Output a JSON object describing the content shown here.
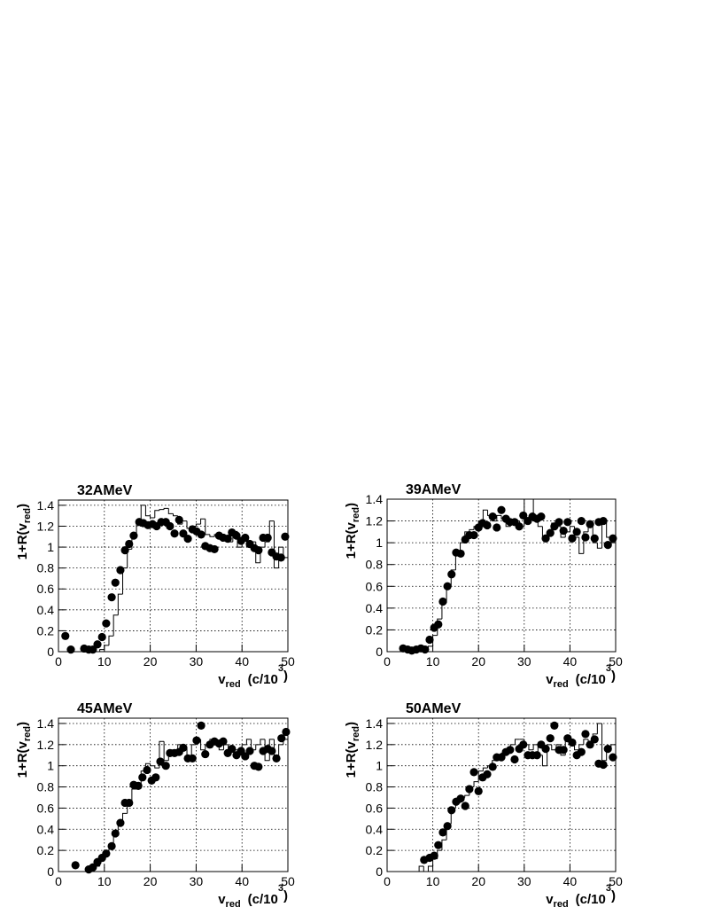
{
  "chart_data": [
    {
      "type": "scatter",
      "title": "32AMeV",
      "xlabel": [
        "v",
        "red",
        "(c/10",
        "3",
        ")"
      ],
      "ylabel": [
        "1+R(v",
        "red",
        ")"
      ],
      "color": "#000000",
      "grid": true,
      "xlim": [
        0,
        50
      ],
      "ylim": [
        0,
        1.45
      ],
      "xticks": [
        0,
        10,
        20,
        30,
        40,
        50
      ],
      "yticks": [
        0,
        0.2,
        0.4,
        0.6,
        0.8,
        1,
        1.2,
        1.4
      ],
      "x": [
        1.5,
        2.7,
        5.6,
        6.6,
        7.5,
        8.5,
        9.5,
        10.4,
        11.6,
        12.4,
        13.5,
        14.5,
        15.4,
        16.4,
        17.6,
        18.5,
        19.5,
        20.5,
        21.4,
        22.4,
        23.4,
        24.3,
        25.3,
        26.3,
        27.2,
        28.2,
        29.2,
        30.1,
        31.1,
        32,
        33,
        34,
        35,
        35.9,
        36.9,
        37.8,
        38.8,
        39.8,
        40.7,
        41.7,
        42.7,
        43.6,
        44.6,
        45.6,
        46.5,
        47.5,
        48.5,
        49.4
      ],
      "values": [
        0.15,
        0.02,
        0.03,
        0.02,
        0.02,
        0.07,
        0.14,
        0.27,
        0.52,
        0.66,
        0.78,
        0.97,
        1.03,
        1.11,
        1.24,
        1.23,
        1.21,
        1.22,
        1.2,
        1.24,
        1.24,
        1.2,
        1.13,
        1.26,
        1.13,
        1.08,
        1.17,
        1.15,
        1.12,
        1.01,
        0.99,
        0.98,
        1.11,
        1.09,
        1.08,
        1.14,
        1.11,
        1.06,
        1.09,
        1.03,
        0.99,
        0.97,
        1.09,
        1.09,
        0.95,
        0.91,
        0.9,
        1.1
      ],
      "histogram": {
        "bins": [
          0,
          1,
          2,
          3,
          4,
          5,
          6,
          7,
          8,
          9,
          10,
          11,
          12,
          13,
          14,
          15,
          16,
          17,
          18,
          19,
          20,
          21,
          22,
          23,
          24,
          25,
          26,
          27,
          28,
          29,
          30,
          31,
          32,
          33,
          34,
          35,
          36,
          37,
          38,
          39,
          40,
          41,
          42,
          43,
          44,
          45,
          46,
          47,
          48,
          49,
          50
        ],
        "values": [
          0,
          0,
          0,
          0,
          0,
          0,
          0,
          0,
          0,
          0.02,
          0.06,
          0.15,
          0.35,
          0.55,
          0.8,
          0.98,
          1.1,
          1.25,
          1.4,
          1.3,
          1.28,
          1.35,
          1.36,
          1.37,
          1.32,
          1.3,
          1.22,
          1.25,
          1.18,
          1.2,
          1.22,
          1.27,
          1.12,
          1.1,
          1.12,
          1.1,
          1.08,
          1.05,
          1.15,
          1.0,
          1.08,
          1.0,
          1.05,
          0.85,
          1.0,
          1.05,
          1.25,
          0.8,
          1.0,
          0.9
        ]
      }
    },
    {
      "type": "scatter",
      "title": "39AMeV",
      "xlabel": [
        "v",
        "red",
        "(c/10",
        "3",
        ")"
      ],
      "ylabel": [
        "1+R(v",
        "red",
        ")"
      ],
      "color": "#000000",
      "grid": true,
      "xlim": [
        0,
        50
      ],
      "ylim": [
        0,
        1.4
      ],
      "xticks": [
        0,
        10,
        20,
        30,
        40,
        50
      ],
      "yticks": [
        0,
        0.2,
        0.4,
        0.6,
        0.8,
        1,
        1.2,
        1.4
      ],
      "x": [
        3.5,
        4.5,
        5.4,
        6.4,
        7.4,
        8.3,
        9.3,
        10.3,
        11.2,
        12.2,
        13.2,
        14.1,
        15.1,
        16.1,
        17.1,
        18,
        19,
        20,
        20.9,
        21.9,
        23.1,
        24,
        25,
        26,
        26.9,
        27.9,
        28.9,
        29.8,
        30.8,
        31.8,
        32.8,
        33.7,
        34.7,
        35.7,
        36.6,
        37.6,
        38.6,
        39.5,
        40.5,
        41.5,
        42.5,
        43.4,
        44.4,
        45.4,
        46.3,
        47.3,
        48.3,
        49.4
      ],
      "values": [
        0.03,
        0.02,
        0.01,
        0.02,
        0.03,
        0.02,
        0.11,
        0.22,
        0.25,
        0.46,
        0.6,
        0.71,
        0.91,
        0.9,
        1.03,
        1.07,
        1.07,
        1.14,
        1.18,
        1.16,
        1.24,
        1.14,
        1.3,
        1.22,
        1.19,
        1.19,
        1.15,
        1.25,
        1.2,
        1.24,
        1.22,
        1.24,
        1.04,
        1.09,
        1.15,
        1.19,
        1.11,
        1.19,
        1.04,
        1.1,
        1.2,
        1.05,
        1.17,
        1.04,
        1.19,
        1.2,
        0.98,
        1.04
      ],
      "histogram": {
        "bins": [
          0,
          1,
          2,
          3,
          4,
          5,
          6,
          7,
          8,
          9,
          10,
          11,
          12,
          13,
          14,
          15,
          16,
          17,
          18,
          19,
          20,
          21,
          22,
          23,
          24,
          25,
          26,
          27,
          28,
          29,
          30,
          31,
          32,
          33,
          34,
          35,
          36,
          37,
          38,
          39,
          40,
          41,
          42,
          43,
          44,
          45,
          46,
          47,
          48,
          49,
          50
        ],
        "values": [
          0,
          0,
          0,
          0,
          0,
          0,
          0,
          0,
          0,
          0.05,
          0.15,
          0.3,
          0.45,
          0.6,
          0.75,
          0.9,
          1.0,
          1.1,
          1.12,
          1.15,
          1.2,
          1.3,
          1.25,
          1.2,
          1.25,
          1.22,
          1.15,
          1.18,
          1.2,
          1.15,
          1.4,
          1.4,
          1.2,
          1.15,
          1.05,
          1.1,
          1.18,
          1.15,
          1.05,
          1.1,
          1.15,
          1.05,
          0.9,
          1.1,
          1.15,
          1.0,
          0.95,
          1.2,
          1.05,
          1.0
        ]
      }
    },
    {
      "type": "scatter",
      "title": "45AMeV",
      "xlabel": [
        "v",
        "red",
        "(c/10",
        "3",
        ")"
      ],
      "ylabel": [
        "1+R(v",
        "red",
        ")"
      ],
      "color": "#000000",
      "grid": true,
      "xlim": [
        0,
        50
      ],
      "ylim": [
        0,
        1.45
      ],
      "xticks": [
        0,
        10,
        20,
        30,
        40,
        50
      ],
      "yticks": [
        0,
        0.2,
        0.4,
        0.6,
        0.8,
        1,
        1.2,
        1.4
      ],
      "x": [
        3.7,
        6.6,
        7.5,
        8.5,
        9.5,
        10.4,
        11.6,
        12.4,
        13.5,
        14.5,
        15.4,
        16.4,
        17.4,
        18.3,
        19.3,
        20.3,
        21.2,
        22.2,
        23.4,
        24.3,
        25.3,
        26.3,
        27.2,
        28.2,
        29.2,
        30.1,
        31.1,
        32,
        33,
        34,
        35,
        35.9,
        36.9,
        37.8,
        38.8,
        39.8,
        40.7,
        41.7,
        42.7,
        43.6,
        44.6,
        45.6,
        46.5,
        47.5,
        48.6,
        49.6
      ],
      "values": [
        0.06,
        0.02,
        0.04,
        0.09,
        0.13,
        0.17,
        0.24,
        0.36,
        0.46,
        0.65,
        0.65,
        0.82,
        0.81,
        0.89,
        0.96,
        0.86,
        0.89,
        1.04,
        1.0,
        1.12,
        1.12,
        1.13,
        1.17,
        1.07,
        1.07,
        1.24,
        1.38,
        1.11,
        1.2,
        1.23,
        1.21,
        1.23,
        1.12,
        1.16,
        1.1,
        1.14,
        1.09,
        1.14,
        1.0,
        0.99,
        1.14,
        1.16,
        1.14,
        1.07,
        1.26,
        1.32
      ],
      "histogram": {
        "bins": [
          0,
          1,
          2,
          3,
          4,
          5,
          6,
          7,
          8,
          9,
          10,
          11,
          12,
          13,
          14,
          15,
          16,
          17,
          18,
          19,
          20,
          21,
          22,
          23,
          24,
          25,
          26,
          27,
          28,
          29,
          30,
          31,
          32,
          33,
          34,
          35,
          36,
          37,
          38,
          39,
          40,
          41,
          42,
          43,
          44,
          45,
          46,
          47,
          48,
          49,
          50
        ],
        "values": [
          0,
          0,
          0,
          0,
          0,
          0,
          0,
          0.02,
          0.05,
          0.1,
          0.15,
          0.22,
          0.35,
          0.45,
          0.55,
          0.65,
          0.78,
          0.82,
          0.95,
          1.02,
          1.0,
          0.98,
          1.23,
          1.05,
          1.15,
          1.15,
          1.2,
          1.18,
          1.05,
          1.2,
          1.25,
          1.15,
          1.2,
          1.25,
          1.22,
          1.15,
          1.2,
          1.15,
          1.15,
          1.1,
          1.2,
          1.25,
          1.15,
          1.2,
          1.25,
          1.05,
          1.25,
          1.1,
          1.2,
          1.25
        ]
      }
    },
    {
      "type": "scatter",
      "title": "50AMeV",
      "xlabel": [
        "v",
        "red",
        "(c/10",
        "3",
        ")"
      ],
      "ylabel": [
        "1+R(v",
        "red",
        ")"
      ],
      "color": "#000000",
      "grid": true,
      "xlim": [
        0,
        50
      ],
      "ylim": [
        0,
        1.45
      ],
      "xticks": [
        0,
        10,
        20,
        30,
        40,
        50
      ],
      "yticks": [
        0,
        0.2,
        0.4,
        0.6,
        0.8,
        1,
        1.2,
        1.4
      ],
      "x": [
        8.1,
        9.3,
        10.3,
        11.2,
        12.2,
        13.2,
        14.1,
        15.1,
        16.1,
        17.1,
        18,
        19,
        20,
        20.9,
        21.9,
        23.1,
        24,
        25,
        26,
        26.9,
        27.9,
        28.9,
        29.8,
        30.8,
        31.8,
        32.8,
        33.7,
        34.7,
        35.7,
        36.6,
        37.6,
        38.6,
        39.5,
        40.5,
        41.5,
        42.5,
        43.4,
        44.4,
        45.4,
        46.3,
        47.3,
        48.3,
        49.4
      ],
      "values": [
        0.11,
        0.13,
        0.15,
        0.25,
        0.37,
        0.43,
        0.58,
        0.66,
        0.69,
        0.62,
        0.78,
        0.94,
        0.76,
        0.89,
        0.92,
        0.99,
        1.08,
        1.08,
        1.13,
        1.15,
        1.06,
        1.16,
        1.2,
        1.1,
        1.1,
        1.1,
        1.2,
        1.16,
        1.26,
        1.38,
        1.15,
        1.15,
        1.26,
        1.22,
        1.1,
        1.13,
        1.3,
        1.2,
        1.25,
        1.02,
        1.01,
        1.16,
        1.08
      ],
      "histogram": {
        "bins": [
          0,
          1,
          2,
          3,
          4,
          5,
          6,
          7,
          8,
          9,
          10,
          11,
          12,
          13,
          14,
          15,
          16,
          17,
          18,
          19,
          20,
          21,
          22,
          23,
          24,
          25,
          26,
          27,
          28,
          29,
          30,
          31,
          32,
          33,
          34,
          35,
          36,
          37,
          38,
          39,
          40,
          41,
          42,
          43,
          44,
          45,
          46,
          47,
          48,
          49,
          50
        ],
        "values": [
          0,
          0,
          0,
          0,
          0,
          0,
          0,
          0.05,
          0,
          0.05,
          0.12,
          0.2,
          0.3,
          0.45,
          0.6,
          0.65,
          0.7,
          0.72,
          0.8,
          0.85,
          0.95,
          0.98,
          1.0,
          1.05,
          1.1,
          1.12,
          1.15,
          1.2,
          1.25,
          1.25,
          1.2,
          1.15,
          1.2,
          1.1,
          1.0,
          1.2,
          1.15,
          1.2,
          1.1,
          1.25,
          1.2,
          1.15,
          1.2,
          1.25,
          1.2,
          1.3,
          1.4,
          1.05,
          1.15,
          1.2
        ]
      }
    }
  ]
}
